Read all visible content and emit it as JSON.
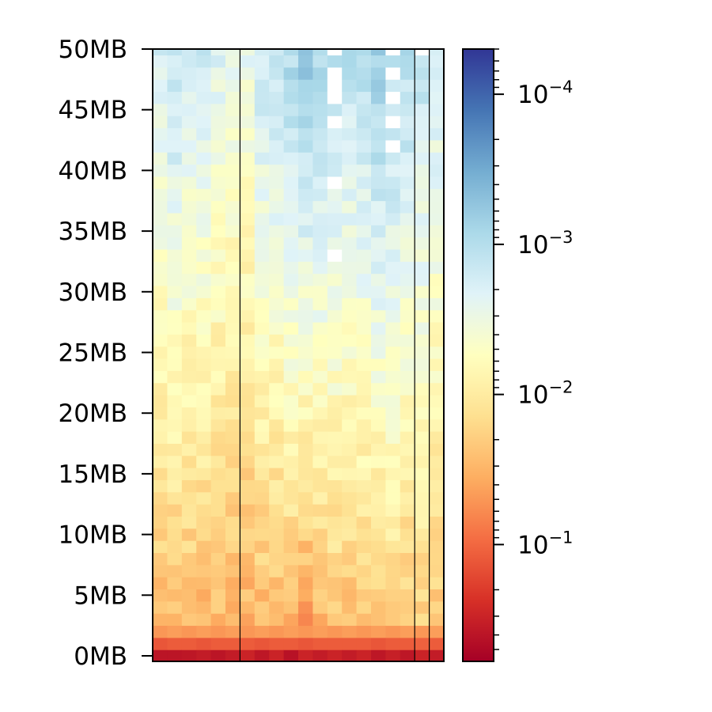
{
  "chart_data": {
    "type": "heatmap",
    "title": "",
    "xlabel": "",
    "ylabel": "",
    "x_ticks": [],
    "ylim": [
      0,
      50
    ],
    "y_unit": "MB",
    "y_ticks": [
      {
        "value": 0,
        "label": "0MB"
      },
      {
        "value": 5,
        "label": "5MB"
      },
      {
        "value": 10,
        "label": "10MB"
      },
      {
        "value": 15,
        "label": "15MB"
      },
      {
        "value": 20,
        "label": "20MB"
      },
      {
        "value": 25,
        "label": "25MB"
      },
      {
        "value": 30,
        "label": "30MB"
      },
      {
        "value": 35,
        "label": "35MB"
      },
      {
        "value": 40,
        "label": "40MB"
      },
      {
        "value": 45,
        "label": "45MB"
      },
      {
        "value": 50,
        "label": "50MB"
      }
    ],
    "columns": 20,
    "rows": 51,
    "row_bin_mb": 1,
    "colormap": "RdYlBu",
    "color_scale": "log",
    "color_range": [
      5e-05,
      0.6
    ],
    "colorbar_ticks": [
      {
        "value": 0.0001,
        "base": "10",
        "exponent": "−4"
      },
      {
        "value": 0.001,
        "base": "10",
        "exponent": "−3"
      },
      {
        "value": 0.01,
        "base": "10",
        "exponent": "−2"
      },
      {
        "value": 0.1,
        "base": "10",
        "exponent": "−1"
      }
    ],
    "group_separators_after_column": [
      6,
      18,
      19
    ],
    "bottom_rows": [
      {
        "row": 0,
        "values": [
          0.4,
          0.4,
          0.38,
          0.35,
          0.4,
          0.35,
          0.3,
          0.38,
          0.3,
          0.42,
          0.3,
          0.35,
          0.3,
          0.35,
          0.3,
          0.38,
          0.32,
          0.38,
          0.3,
          0.35
        ]
      },
      {
        "row": 1,
        "values": [
          0.13,
          0.12,
          0.12,
          0.13,
          0.12,
          0.12,
          0.12,
          0.13,
          0.12,
          0.12,
          0.13,
          0.12,
          0.12,
          0.12,
          0.12,
          0.13,
          0.12,
          0.12,
          0.11,
          0.12
        ]
      },
      {
        "row": 2,
        "values": [
          0.05,
          0.045,
          0.05,
          0.045,
          0.05,
          0.045,
          0.05,
          0.045,
          0.05,
          0.045,
          0.05,
          0.045,
          0.05,
          0.045,
          0.05,
          0.045,
          0.05,
          0.045,
          0.05,
          0.045
        ]
      }
    ],
    "column_profiles": [
      {
        "column": 1,
        "value_at_row_3": 0.028,
        "value_at_row_50": 0.0018
      },
      {
        "column": 2,
        "value_at_row_3": 0.03,
        "value_at_row_50": 0.0012
      },
      {
        "column": 3,
        "value_at_row_3": 0.028,
        "value_at_row_50": 0.0018
      },
      {
        "column": 4,
        "value_at_row_3": 0.032,
        "value_at_row_50": 0.0015
      },
      {
        "column": 5,
        "value_at_row_3": 0.03,
        "value_at_row_50": 0.0022
      },
      {
        "column": 6,
        "value_at_row_3": 0.032,
        "value_at_row_50": 0.0028
      },
      {
        "column": 7,
        "value_at_row_3": 0.034,
        "value_at_row_50": 0.0028
      },
      {
        "column": 8,
        "value_at_row_3": 0.03,
        "value_at_row_50": 0.0015
      },
      {
        "column": 9,
        "value_at_row_3": 0.034,
        "value_at_row_50": 0.0012
      },
      {
        "column": 10,
        "value_at_row_3": 0.028,
        "value_at_row_50": 0.0009
      },
      {
        "column": 11,
        "value_at_row_3": 0.05,
        "value_at_row_50": 0.0006
      },
      {
        "column": 12,
        "value_at_row_3": 0.03,
        "value_at_row_50": 0.0008
      },
      {
        "column": 13,
        "value_at_row_3": 0.025,
        "value_at_row_50": 0.0009
      },
      {
        "column": 14,
        "value_at_row_3": 0.027,
        "value_at_row_50": 0.0011
      },
      {
        "column": 15,
        "value_at_row_3": 0.022,
        "value_at_row_50": 0.0011
      },
      {
        "column": 16,
        "value_at_row_3": 0.025,
        "value_at_row_50": 0.0007
      },
      {
        "column": 17,
        "value_at_row_3": 0.02,
        "value_at_row_50": 0.0009
      },
      {
        "column": 18,
        "value_at_row_3": 0.024,
        "value_at_row_50": 0.001
      },
      {
        "column": 19,
        "value_at_row_3": 0.02,
        "value_at_row_50": 0.0012
      },
      {
        "column": 20,
        "value_at_row_3": 0.022,
        "value_at_row_50": 0.0016
      }
    ],
    "empty_cells": [
      {
        "column": 13,
        "row": 50
      },
      {
        "column": 13,
        "row": 48
      },
      {
        "column": 13,
        "row": 47
      },
      {
        "column": 13,
        "row": 46
      },
      {
        "column": 13,
        "row": 44
      },
      {
        "column": 13,
        "row": 39
      },
      {
        "column": 13,
        "row": 33
      },
      {
        "column": 17,
        "row": 50
      },
      {
        "column": 17,
        "row": 48
      },
      {
        "column": 17,
        "row": 46
      },
      {
        "column": 17,
        "row": 44
      },
      {
        "column": 17,
        "row": 42
      },
      {
        "column": 19,
        "row": 50
      }
    ]
  }
}
